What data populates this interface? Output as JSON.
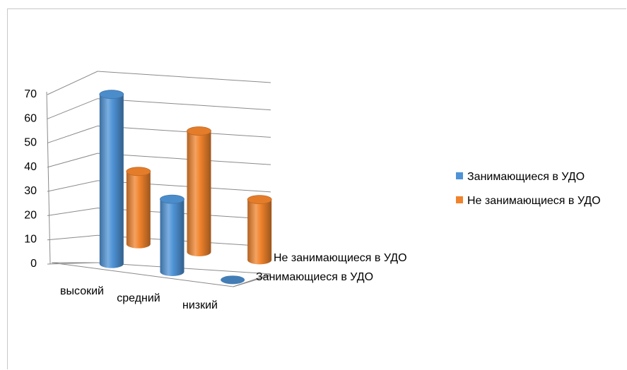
{
  "chart_data": {
    "type": "bar",
    "style": "3d-cylinder",
    "categories": [
      "высокий",
      "средний",
      "низкий"
    ],
    "series": [
      {
        "name": "Занимающиеся в УДО",
        "values": [
          70,
          30,
          0
        ],
        "color": "#4f93d6"
      },
      {
        "name": "Не занимающиеся в УДО",
        "values": [
          30,
          50,
          25
        ],
        "color": "#f0832c"
      }
    ],
    "yticks": [
      0,
      10,
      20,
      30,
      40,
      50,
      60,
      70
    ],
    "ylim": [
      0,
      70
    ],
    "depth_labels": [
      "Не занимающиеся в УДО",
      "Занимающиеся в УДО"
    ],
    "legend_position": "right",
    "grid": true,
    "title": "",
    "xlabel": "",
    "ylabel": ""
  }
}
